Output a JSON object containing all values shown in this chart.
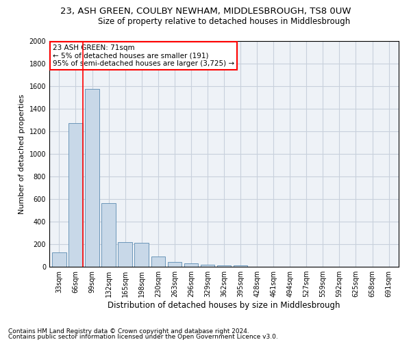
{
  "title1": "23, ASH GREEN, COULBY NEWHAM, MIDDLESBROUGH, TS8 0UW",
  "title2": "Size of property relative to detached houses in Middlesbrough",
  "xlabel": "Distribution of detached houses by size in Middlesbrough",
  "ylabel": "Number of detached properties",
  "footnote1": "Contains HM Land Registry data © Crown copyright and database right 2024.",
  "footnote2": "Contains public sector information licensed under the Open Government Licence v3.0.",
  "categories": [
    "33sqm",
    "66sqm",
    "99sqm",
    "132sqm",
    "165sqm",
    "198sqm",
    "230sqm",
    "263sqm",
    "296sqm",
    "329sqm",
    "362sqm",
    "395sqm",
    "428sqm",
    "461sqm",
    "494sqm",
    "527sqm",
    "559sqm",
    "592sqm",
    "625sqm",
    "658sqm",
    "691sqm"
  ],
  "values": [
    130,
    1270,
    1575,
    565,
    220,
    215,
    90,
    45,
    30,
    20,
    15,
    15,
    0,
    0,
    0,
    0,
    0,
    0,
    0,
    0,
    0
  ],
  "bar_color": "#c8d8e8",
  "bar_edge_color": "#5a8ab0",
  "annotation_text": "23 ASH GREEN: 71sqm\n← 5% of detached houses are smaller (191)\n95% of semi-detached houses are larger (3,725) →",
  "annotation_box_color": "white",
  "annotation_box_edge_color": "red",
  "vline_color": "red",
  "vline_x_index": 1,
  "ylim": [
    0,
    2000
  ],
  "yticks": [
    0,
    200,
    400,
    600,
    800,
    1000,
    1200,
    1400,
    1600,
    1800,
    2000
  ],
  "grid_color": "#c8d0dc",
  "bg_color": "#eef2f7",
  "title1_fontsize": 9.5,
  "title2_fontsize": 8.5,
  "xlabel_fontsize": 8.5,
  "ylabel_fontsize": 8,
  "annotation_fontsize": 7.5,
  "footnote_fontsize": 6.5,
  "tick_fontsize": 7
}
